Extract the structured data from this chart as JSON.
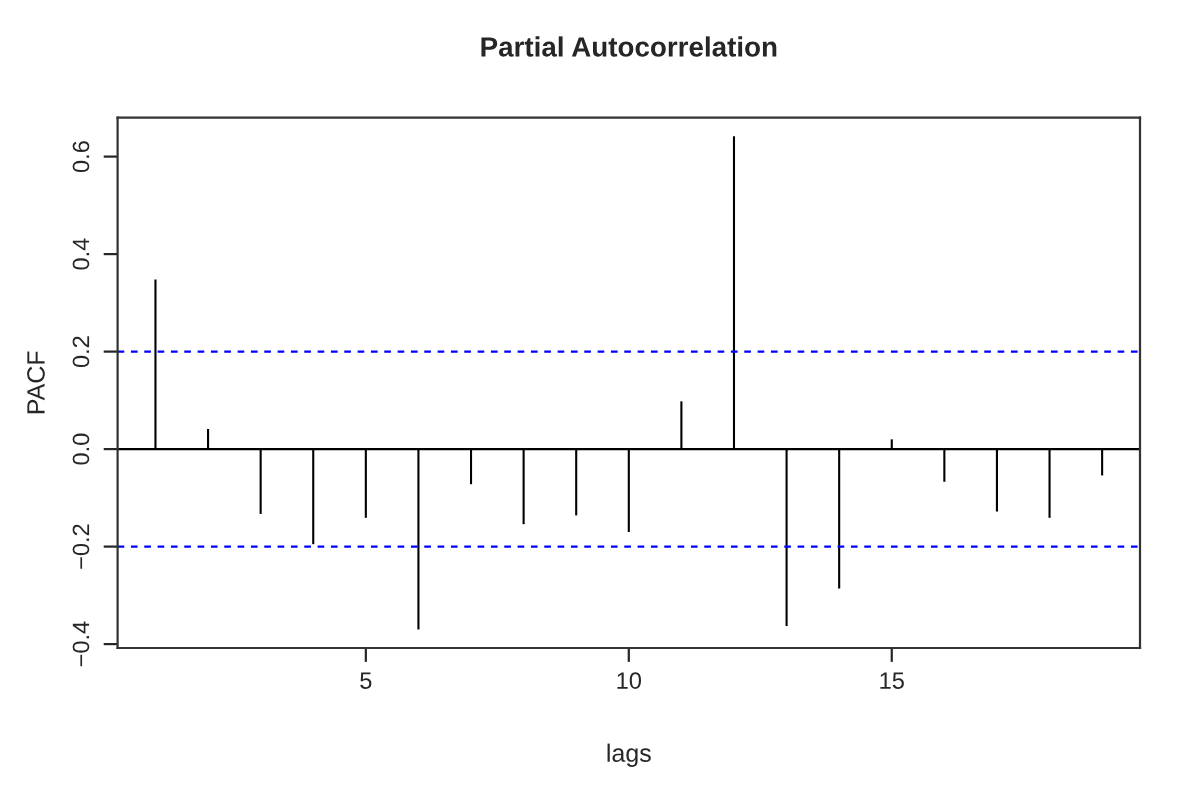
{
  "chart_data": {
    "type": "bar",
    "title": "Partial Autocorrelation",
    "xlabel": "lags",
    "ylabel": "PACF",
    "x": [
      1,
      2,
      3,
      4,
      5,
      6,
      7,
      8,
      9,
      10,
      11,
      12,
      13,
      14,
      15,
      16,
      17,
      18,
      19
    ],
    "series": [
      {
        "color": "#000000",
        "values": [
          0.348,
          0.041,
          -0.133,
          -0.195,
          -0.141,
          -0.37,
          -0.072,
          -0.154,
          -0.136,
          -0.17,
          0.098,
          0.642,
          -0.363,
          -0.286,
          0.02,
          -0.067,
          -0.128,
          -0.141,
          -0.054
        ]
      }
    ],
    "xlim": [
      0.28,
      19.72
    ],
    "ylim": [
      -0.408,
      0.68
    ],
    "xticks": [
      5,
      10,
      15
    ],
    "yticks": [
      -0.4,
      -0.2,
      {
        "value": 0,
        "label": "0.0"
      },
      0.2,
      0.4,
      0.6
    ],
    "ref_lines": [
      {
        "axis": "y",
        "value": 0.2,
        "color": "#0000ff",
        "line_style": "dashed"
      },
      {
        "axis": "y",
        "value": -0.2,
        "color": "#0000ff",
        "line_style": "dashed"
      },
      {
        "axis": "y",
        "value": 0,
        "color": "#000000",
        "line_style": "solid"
      }
    ],
    "grid": false,
    "legend": false
  }
}
